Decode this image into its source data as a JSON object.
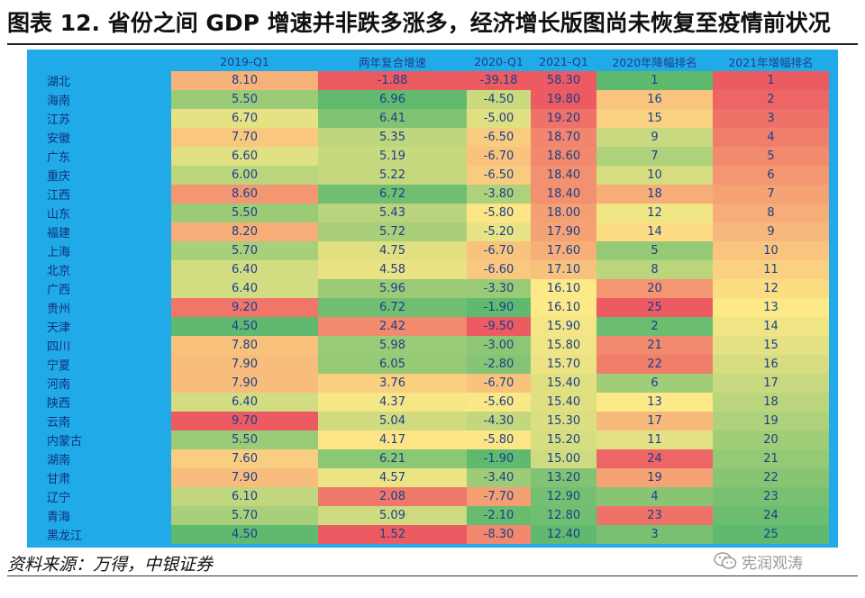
{
  "title": "图表 12. 省份之间 GDP 增速并非跌多涨多，经济增长版图尚未恢复至疫情前状况",
  "source": "资料来源：万得，中银证券",
  "watermark": "宪润观涛",
  "watermark_icon": "wechat-icon",
  "columns": [
    "",
    "2019-Q1",
    "两年复合增速",
    "2020-Q1",
    "2021-Q1",
    "2020年降幅排名",
    "2021年增幅排名"
  ],
  "rows": [
    {
      "province": "湖北",
      "gdp2019": "8.10",
      "cagr2y": "-1.88",
      "gdp2020": "-39.18",
      "gdp2021": "58.30",
      "rank2020": "1",
      "rank2021": "1"
    },
    {
      "province": "海南",
      "gdp2019": "5.50",
      "cagr2y": "6.96",
      "gdp2020": "-4.50",
      "gdp2021": "19.80",
      "rank2020": "16",
      "rank2021": "2"
    },
    {
      "province": "江苏",
      "gdp2019": "6.70",
      "cagr2y": "6.41",
      "gdp2020": "-5.00",
      "gdp2021": "19.20",
      "rank2020": "15",
      "rank2021": "3"
    },
    {
      "province": "安徽",
      "gdp2019": "7.70",
      "cagr2y": "5.35",
      "gdp2020": "-6.50",
      "gdp2021": "18.70",
      "rank2020": "9",
      "rank2021": "4"
    },
    {
      "province": "广东",
      "gdp2019": "6.60",
      "cagr2y": "5.19",
      "gdp2020": "-6.70",
      "gdp2021": "18.60",
      "rank2020": "7",
      "rank2021": "5"
    },
    {
      "province": "重庆",
      "gdp2019": "6.00",
      "cagr2y": "5.22",
      "gdp2020": "-6.50",
      "gdp2021": "18.40",
      "rank2020": "10",
      "rank2021": "6"
    },
    {
      "province": "江西",
      "gdp2019": "8.60",
      "cagr2y": "6.72",
      "gdp2020": "-3.80",
      "gdp2021": "18.40",
      "rank2020": "18",
      "rank2021": "7"
    },
    {
      "province": "山东",
      "gdp2019": "5.50",
      "cagr2y": "5.43",
      "gdp2020": "-5.80",
      "gdp2021": "18.00",
      "rank2020": "12",
      "rank2021": "8"
    },
    {
      "province": "福建",
      "gdp2019": "8.20",
      "cagr2y": "5.72",
      "gdp2020": "-5.20",
      "gdp2021": "17.90",
      "rank2020": "14",
      "rank2021": "9"
    },
    {
      "province": "上海",
      "gdp2019": "5.70",
      "cagr2y": "4.75",
      "gdp2020": "-6.70",
      "gdp2021": "17.60",
      "rank2020": "5",
      "rank2021": "10"
    },
    {
      "province": "北京",
      "gdp2019": "6.40",
      "cagr2y": "4.58",
      "gdp2020": "-6.60",
      "gdp2021": "17.10",
      "rank2020": "8",
      "rank2021": "11"
    },
    {
      "province": "广西",
      "gdp2019": "6.40",
      "cagr2y": "5.96",
      "gdp2020": "-3.30",
      "gdp2021": "16.10",
      "rank2020": "20",
      "rank2021": "12"
    },
    {
      "province": "贵州",
      "gdp2019": "9.20",
      "cagr2y": "6.72",
      "gdp2020": "-1.90",
      "gdp2021": "16.10",
      "rank2020": "25",
      "rank2021": "13"
    },
    {
      "province": "天津",
      "gdp2019": "4.50",
      "cagr2y": "2.42",
      "gdp2020": "-9.50",
      "gdp2021": "15.90",
      "rank2020": "2",
      "rank2021": "14"
    },
    {
      "province": "四川",
      "gdp2019": "7.80",
      "cagr2y": "5.98",
      "gdp2020": "-3.00",
      "gdp2021": "15.80",
      "rank2020": "21",
      "rank2021": "15"
    },
    {
      "province": "宁夏",
      "gdp2019": "7.90",
      "cagr2y": "6.05",
      "gdp2020": "-2.80",
      "gdp2021": "15.70",
      "rank2020": "22",
      "rank2021": "16"
    },
    {
      "province": "河南",
      "gdp2019": "7.90",
      "cagr2y": "3.76",
      "gdp2020": "-6.70",
      "gdp2021": "15.40",
      "rank2020": "6",
      "rank2021": "17"
    },
    {
      "province": "陕西",
      "gdp2019": "6.40",
      "cagr2y": "4.37",
      "gdp2020": "-5.60",
      "gdp2021": "15.40",
      "rank2020": "13",
      "rank2021": "18"
    },
    {
      "province": "云南",
      "gdp2019": "9.70",
      "cagr2y": "5.04",
      "gdp2020": "-4.30",
      "gdp2021": "15.30",
      "rank2020": "17",
      "rank2021": "19"
    },
    {
      "province": "内蒙古",
      "gdp2019": "5.50",
      "cagr2y": "4.17",
      "gdp2020": "-5.80",
      "gdp2021": "15.20",
      "rank2020": "11",
      "rank2021": "20"
    },
    {
      "province": "湖南",
      "gdp2019": "7.60",
      "cagr2y": "6.21",
      "gdp2020": "-1.90",
      "gdp2021": "15.00",
      "rank2020": "24",
      "rank2021": "21"
    },
    {
      "province": "甘肃",
      "gdp2019": "7.90",
      "cagr2y": "4.57",
      "gdp2020": "-3.40",
      "gdp2021": "13.20",
      "rank2020": "19",
      "rank2021": "22"
    },
    {
      "province": "辽宁",
      "gdp2019": "6.10",
      "cagr2y": "2.08",
      "gdp2020": "-7.70",
      "gdp2021": "12.90",
      "rank2020": "4",
      "rank2021": "23"
    },
    {
      "province": "青海",
      "gdp2019": "5.70",
      "cagr2y": "5.09",
      "gdp2020": "-2.10",
      "gdp2021": "12.80",
      "rank2020": "23",
      "rank2021": "24"
    },
    {
      "province": "黑龙江",
      "gdp2019": "4.50",
      "cagr2y": "1.52",
      "gdp2020": "-8.30",
      "gdp2021": "12.40",
      "rank2020": "3",
      "rank2021": "25"
    }
  ]
}
